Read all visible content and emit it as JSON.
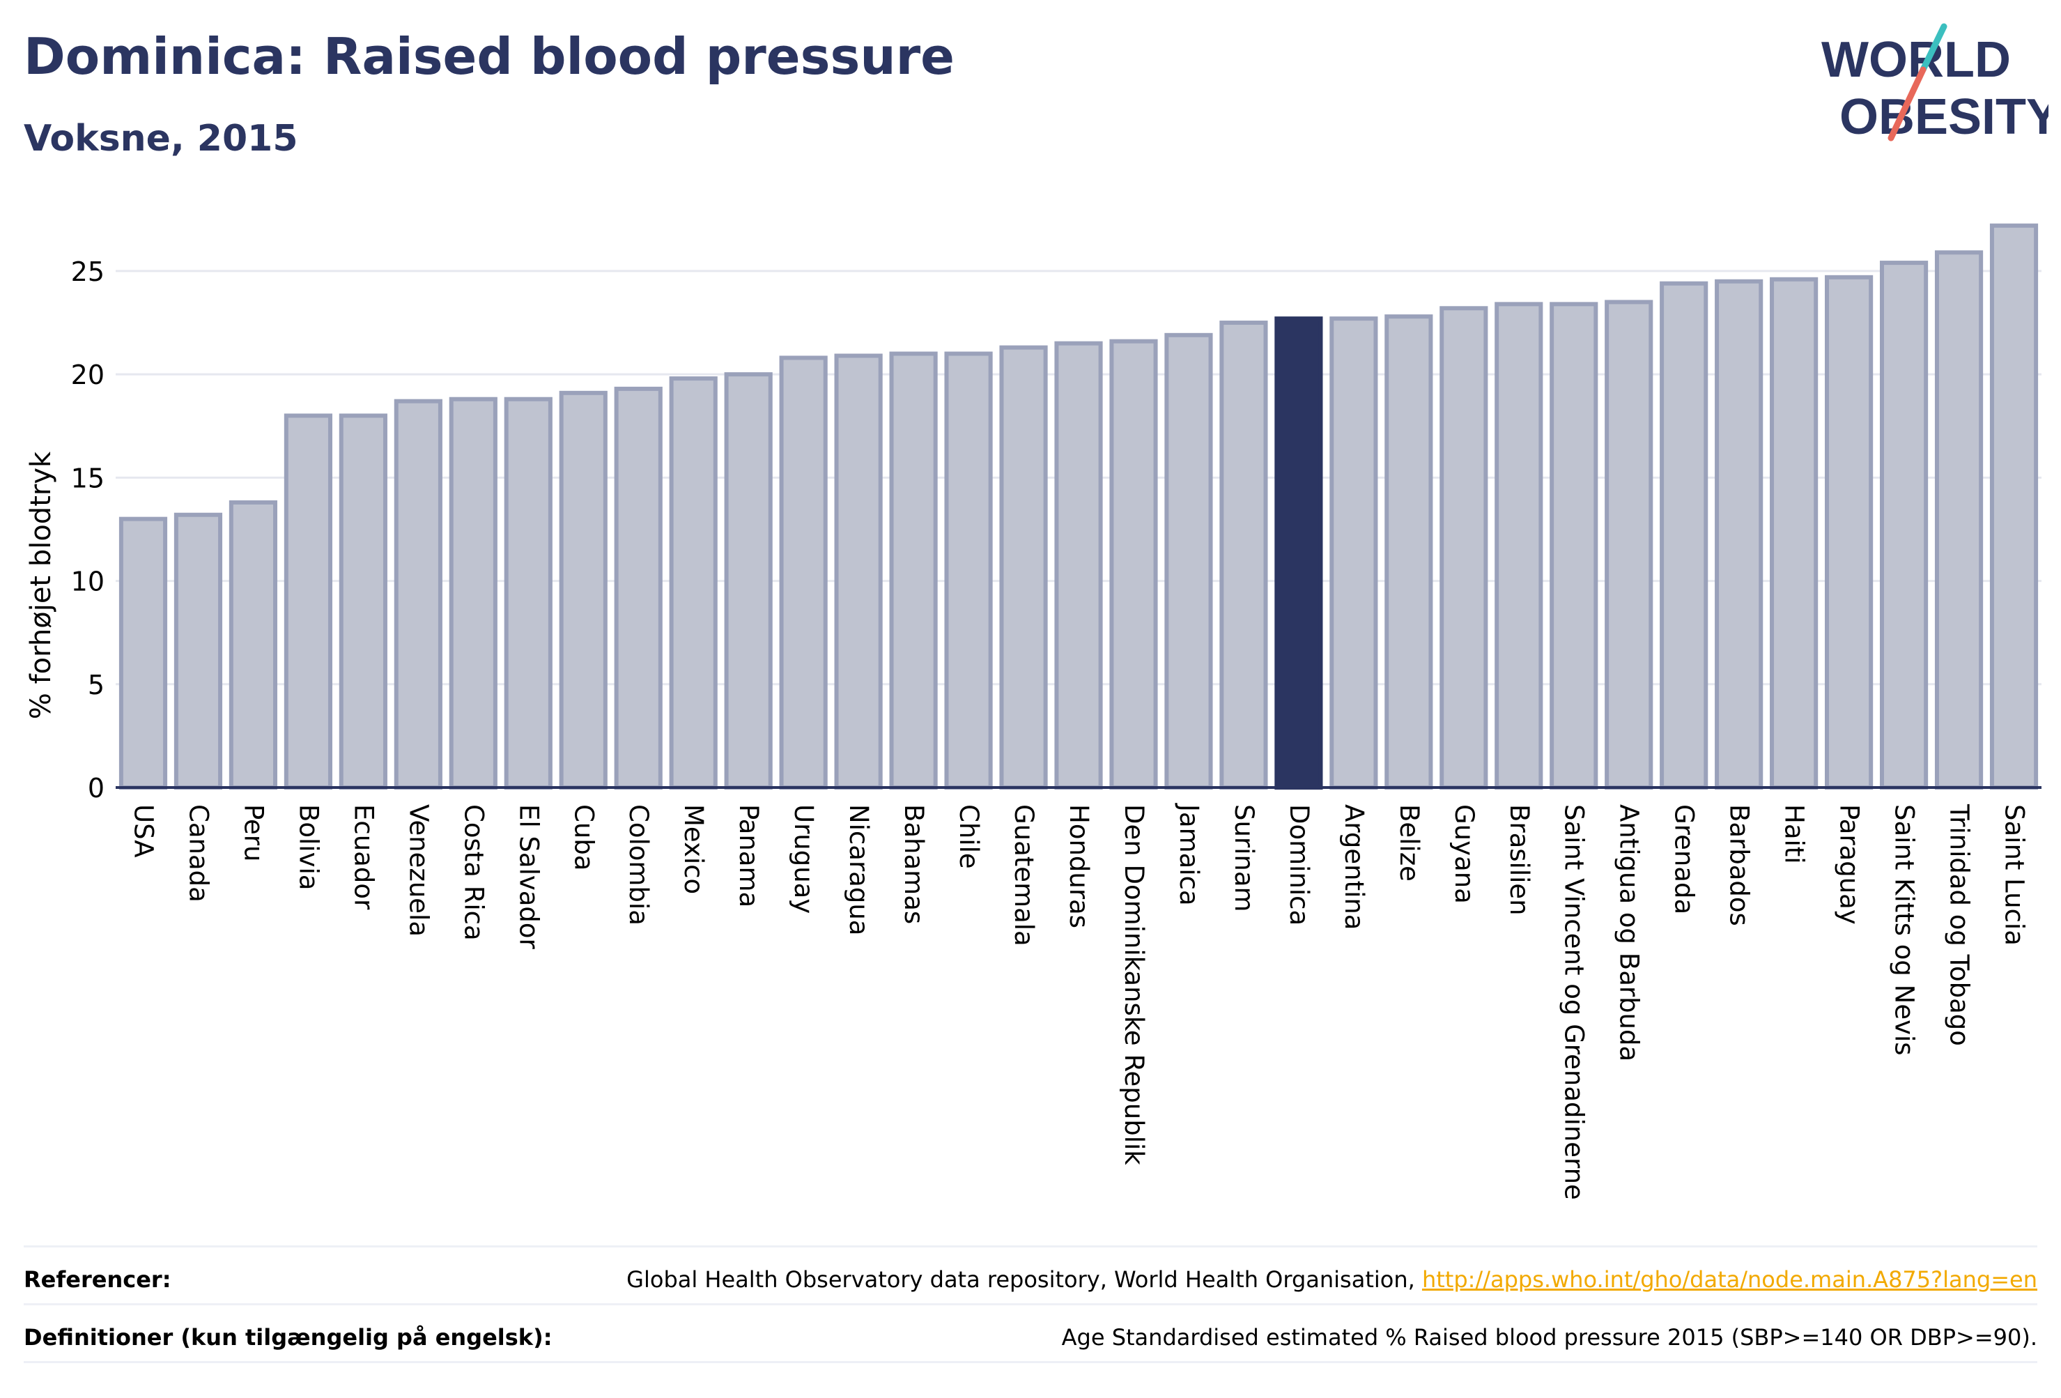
{
  "header": {
    "title": "Dominica: Raised blood pressure",
    "subtitle": "Voksne, 2015"
  },
  "logo": {
    "line1": "WORLD",
    "line2": "OBESITY",
    "accent_colors": [
      "#3bbfbf",
      "#e8685a"
    ]
  },
  "chart_data": {
    "type": "bar",
    "ylabel": "% forhøjet blodtryk",
    "ylim": [
      0,
      28
    ],
    "yticks": [
      0,
      5,
      10,
      15,
      20,
      25
    ],
    "grid": true,
    "highlight": "Dominica",
    "colors": {
      "bar": "#bfc3d0",
      "bar_edge": "#9aa1ba",
      "highlight": "#2b3561"
    },
    "categories": [
      "USA",
      "Canada",
      "Peru",
      "Bolivia",
      "Ecuador",
      "Venezuela",
      "Costa Rica",
      "El Salvador",
      "Cuba",
      "Colombia",
      "Mexico",
      "Panama",
      "Uruguay",
      "Nicaragua",
      "Bahamas",
      "Chile",
      "Guatemala",
      "Honduras",
      "Den Dominikanske Republik",
      "Jamaica",
      "Surinam",
      "Dominica",
      "Argentina",
      "Belize",
      "Guyana",
      "Brasilien",
      "Saint Vincent og Grenadinerne",
      "Antigua og Barbuda",
      "Grenada",
      "Barbados",
      "Haiti",
      "Paraguay",
      "Saint Kitts og Nevis",
      "Trinidad og Tobago",
      "Saint Lucia"
    ],
    "values": [
      13.0,
      13.2,
      13.8,
      18.0,
      18.0,
      18.7,
      18.8,
      18.8,
      19.1,
      19.3,
      19.8,
      20.0,
      20.8,
      20.9,
      21.0,
      21.0,
      21.3,
      21.5,
      21.6,
      21.9,
      22.5,
      22.7,
      22.7,
      22.8,
      23.2,
      23.4,
      23.4,
      23.5,
      24.4,
      24.5,
      24.6,
      24.7,
      25.4,
      25.9,
      27.2
    ]
  },
  "footer": {
    "references_label": "Referencer:",
    "references_text": "Global Health Observatory data repository, World Health Organisation, ",
    "references_link": "http://apps.who.int/gho/data/node.main.A875?lang=en",
    "definitions_label": "Definitioner (kun tilgængelig på engelsk):",
    "definitions_text": "Age Standardised estimated % Raised blood pressure 2015 (SBP>=140 OR DBP>=90)."
  }
}
